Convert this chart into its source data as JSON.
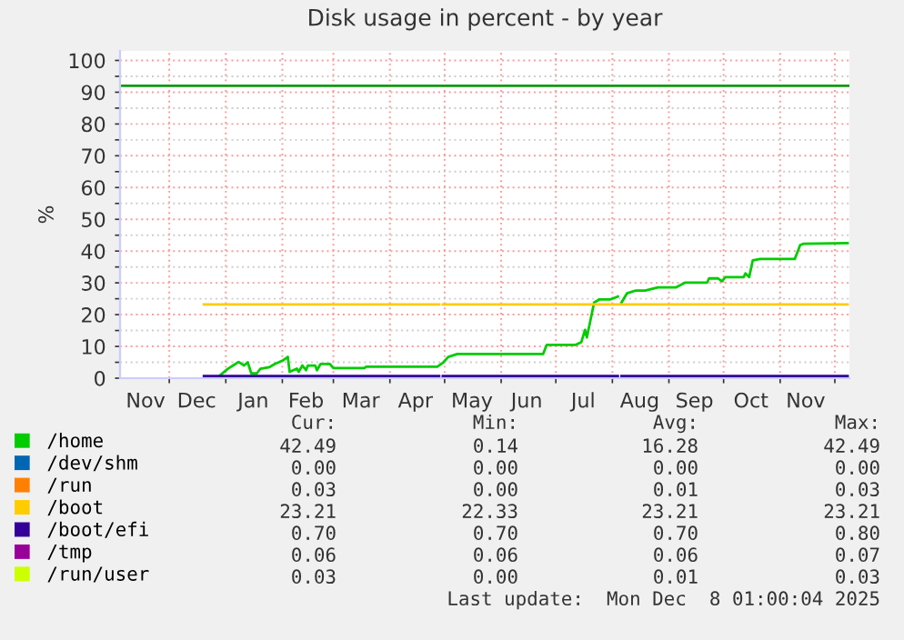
{
  "chart_data": {
    "type": "line",
    "title": "Disk usage in percent - by year",
    "ylabel": "%",
    "xlim": [
      "2024-11-04",
      "2025-12-09"
    ],
    "ylim": [
      0,
      103
    ],
    "xticks": [
      {
        "value": "2024-11-18",
        "label": "Nov"
      },
      {
        "value": "2024-12-01",
        "label": null
      },
      {
        "value": "2024-12-16",
        "label": "Dec"
      },
      {
        "value": "2025-01-01",
        "label": null
      },
      {
        "value": "2025-01-16",
        "label": "Jan"
      },
      {
        "value": "2025-02-01",
        "label": null
      },
      {
        "value": "2025-02-14",
        "label": "Feb"
      },
      {
        "value": "2025-03-01",
        "label": null
      },
      {
        "value": "2025-03-16",
        "label": "Mar"
      },
      {
        "value": "2025-04-01",
        "label": null
      },
      {
        "value": "2025-04-15",
        "label": "Apr"
      },
      {
        "value": "2025-05-01",
        "label": null
      },
      {
        "value": "2025-05-16",
        "label": "May"
      },
      {
        "value": "2025-06-01",
        "label": null
      },
      {
        "value": "2025-06-15",
        "label": "Jun"
      },
      {
        "value": "2025-07-01",
        "label": null
      },
      {
        "value": "2025-07-16",
        "label": "Jul"
      },
      {
        "value": "2025-08-01",
        "label": null
      },
      {
        "value": "2025-08-16",
        "label": "Aug"
      },
      {
        "value": "2025-09-01",
        "label": null
      },
      {
        "value": "2025-09-15",
        "label": "Sep"
      },
      {
        "value": "2025-10-01",
        "label": null
      },
      {
        "value": "2025-10-16",
        "label": "Oct"
      },
      {
        "value": "2025-11-01",
        "label": null
      },
      {
        "value": "2025-11-15",
        "label": "Nov"
      },
      {
        "value": "2025-12-01",
        "label": null
      }
    ],
    "yticks": [
      0,
      {
        "value": 5,
        "label": null
      },
      10,
      {
        "value": 15,
        "label": null
      },
      20,
      {
        "value": 25,
        "label": null
      },
      30,
      {
        "value": 35,
        "label": null
      },
      40,
      {
        "value": 45,
        "label": null
      },
      50,
      {
        "value": 55,
        "label": null
      },
      60,
      {
        "value": 65,
        "label": null
      },
      70,
      {
        "value": 75,
        "label": null
      },
      80,
      {
        "value": 85,
        "label": null
      },
      90,
      {
        "value": 95,
        "label": null
      },
      100
    ],
    "grid": true,
    "legend": "bottom left",
    "ref_lines": [
      {
        "axis": "y",
        "value": 92,
        "color": "#119911"
      }
    ],
    "series": [
      {
        "name": "/home",
        "color": "#00cc00",
        "x": [
          "2024-12-28",
          "2025-01-02",
          "2025-01-08",
          "2025-01-11",
          "2025-01-13",
          "2025-01-15",
          "2025-01-18",
          "2025-01-20",
          "2025-01-25",
          "2025-01-28",
          "2025-02-01",
          "2025-02-04",
          "2025-02-05",
          "2025-02-09",
          "2025-02-10",
          "2025-02-12",
          "2025-02-14",
          "2025-02-15",
          "2025-02-19",
          "2025-02-20",
          "2025-02-22",
          "2025-02-27",
          "2025-03-01",
          "2025-03-18",
          "2025-03-19",
          "2025-04-27",
          "2025-04-30",
          "2025-05-03",
          "2025-05-08",
          "2025-06-24",
          "2025-06-26",
          "2025-07-12",
          "2025-07-15",
          "2025-07-17",
          "2025-07-18",
          "2025-07-22",
          "2025-07-25",
          "2025-07-31",
          "2025-08-04",
          "2025-08-05",
          "2025-08-06",
          "2025-08-09",
          "2025-08-14",
          "2025-08-19",
          "2025-08-26",
          "2025-09-05",
          "2025-09-10",
          "2025-09-22",
          "2025-09-23",
          "2025-09-28",
          "2025-09-30",
          "2025-10-02",
          "2025-10-12",
          "2025-10-13",
          "2025-10-15",
          "2025-10-17",
          "2025-10-21",
          "2025-11-09",
          "2025-11-12",
          "2025-11-14",
          "2025-12-08"
        ],
        "values": [
          0.5,
          2.9,
          5.1,
          4,
          5,
          1.5,
          1.5,
          3,
          3.5,
          4.5,
          5.5,
          6.7,
          2,
          3,
          2,
          4,
          2.5,
          4,
          4,
          2.5,
          4.5,
          4.5,
          3.2,
          3.2,
          3.6,
          3.6,
          4.8,
          6.7,
          7.6,
          7.6,
          10.5,
          10.5,
          11.4,
          15.2,
          12.8,
          23.8,
          24.8,
          24.8,
          25.7,
          null,
          23.8,
          26.7,
          27.6,
          27.6,
          28.6,
          28.6,
          30.1,
          30.1,
          31.4,
          31.4,
          30.5,
          31.8,
          31.8,
          33,
          31.8,
          37.1,
          37.5,
          37.5,
          41.9,
          42.3,
          42.5
        ]
      },
      {
        "name": "/dev/shm",
        "color": "#0066b3"
      },
      {
        "name": "/run",
        "color": "#ff8000"
      },
      {
        "name": "/boot",
        "color": "#ffcc00",
        "x": [
          "2024-12-20",
          "2025-04-28",
          "2025-04-29",
          "2025-04-30",
          "2025-12-08"
        ],
        "values": [
          23.2,
          23.2,
          null,
          23.2,
          23.2
        ]
      },
      {
        "name": "/boot/efi",
        "color": "#330099",
        "x": [
          "2024-12-20",
          "2025-04-28",
          "2025-04-29",
          "2025-04-30",
          "2025-08-04",
          "2025-08-05",
          "2025-08-06",
          "2025-12-08"
        ],
        "values": [
          0.7,
          0.7,
          null,
          0.7,
          0.7,
          null,
          0.7,
          0.7
        ]
      },
      {
        "name": "/tmp",
        "color": "#990099"
      },
      {
        "name": "/run/user",
        "color": "#ccff00"
      }
    ],
    "annotations": [
      "Cur:",
      "Min:",
      "Avg:",
      "Max:",
      "42.49",
      "0.14",
      "16.28",
      "42.49",
      "0.00",
      "0.00",
      "0.00",
      "0.00",
      "0.03",
      "0.00",
      "0.01",
      "0.03",
      "23.21",
      "22.33",
      "23.21",
      "23.21",
      "0.70",
      "0.70",
      "0.70",
      "0.80",
      "0.06",
      "0.06",
      "0.06",
      "0.07",
      "0.03",
      "0.00",
      "0.01",
      "0.03",
      "Last update:  Mon Dec  8 01:00:04 2025"
    ]
  }
}
